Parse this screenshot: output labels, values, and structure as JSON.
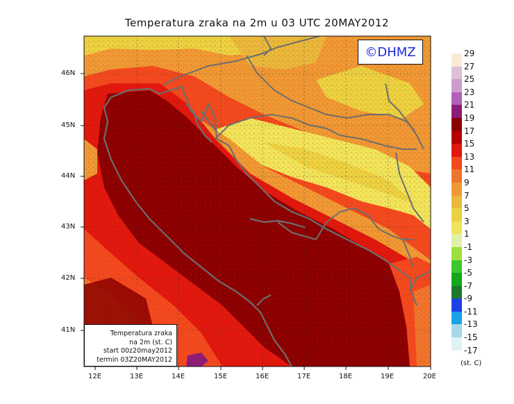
{
  "title": "Temperatura zraka na 2m u 03 UTC 20MAY2012",
  "logo": "©DHMZ",
  "info_box": {
    "line1": "Temperatura zraka",
    "line2": "na 2m (st. C)",
    "line3": "start 00z20may2012",
    "line4": "termin 03Z20MAY2012"
  },
  "lat_labels": [
    "46N",
    "45N",
    "44N",
    "43N",
    "42N",
    "41N"
  ],
  "lon_labels": [
    "12E",
    "13E",
    "14E",
    "15E",
    "16E",
    "17E",
    "18E",
    "19E",
    "20E"
  ],
  "legend": {
    "unit": "(st. C)",
    "items": [
      {
        "label": "29",
        "color": "#fbe9d8"
      },
      {
        "label": "27",
        "color": "#dcc0d8"
      },
      {
        "label": "25",
        "color": "#cc9ccc"
      },
      {
        "label": "23",
        "color": "#b360b8"
      },
      {
        "label": "21",
        "color": "#8c1d78"
      },
      {
        "label": "19",
        "color": "#8b0000"
      },
      {
        "label": "17",
        "color": "#b50000"
      },
      {
        "label": "15",
        "color": "#e0180e"
      },
      {
        "label": "13",
        "color": "#f24a1e"
      },
      {
        "label": "11",
        "color": "#f0752c"
      },
      {
        "label": "9",
        "color": "#ef9934"
      },
      {
        "label": "7",
        "color": "#e9b93a"
      },
      {
        "label": "5",
        "color": "#ebd240"
      },
      {
        "label": "3",
        "color": "#f0e55a"
      },
      {
        "label": "1",
        "color": "#e1f0a8"
      },
      {
        "label": "-1",
        "color": "#9be03c"
      },
      {
        "label": "-3",
        "color": "#3cc82c"
      },
      {
        "label": "-5",
        "color": "#16a81c"
      },
      {
        "label": "-7",
        "color": "#1a7a2a"
      },
      {
        "label": "-9",
        "color": "#1e40e8"
      },
      {
        "label": "-11",
        "color": "#18a2e8"
      },
      {
        "label": "-13",
        "color": "#a6d8e6"
      },
      {
        "label": "-15",
        "color": "#dff2f4"
      },
      {
        "label": "-17",
        "color": "#ffffff"
      }
    ]
  }
}
